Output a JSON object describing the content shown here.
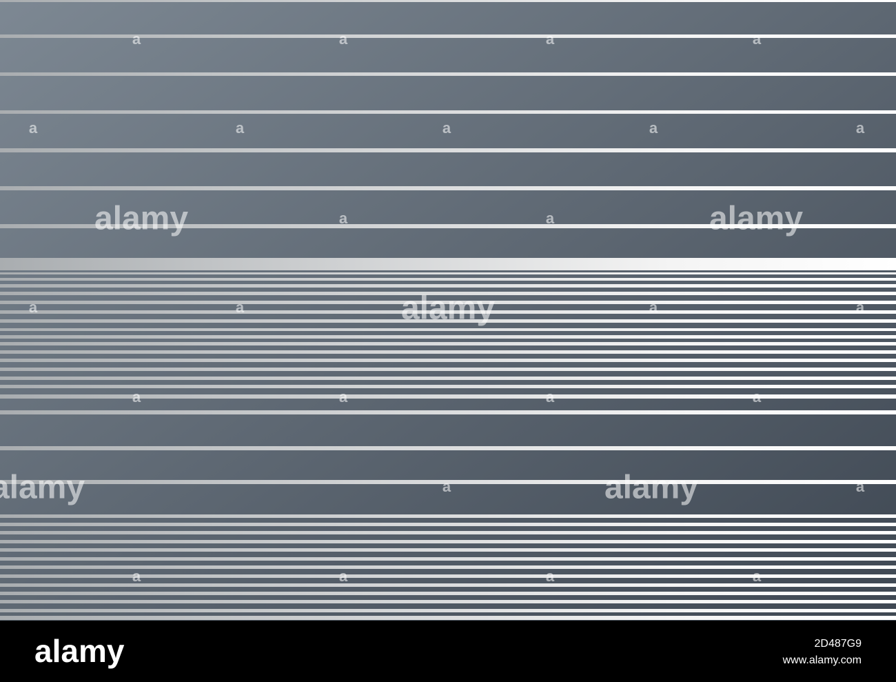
{
  "watermarks": [
    "alamy",
    "alamy",
    "alamy",
    "alamy",
    "alamy"
  ],
  "small_marks": [
    "a",
    "a",
    "a",
    "a",
    "a",
    "a",
    "a",
    "a",
    "a",
    "a",
    "a",
    "a",
    "a",
    "a",
    "a",
    "a",
    "a",
    "a",
    "a",
    "a",
    "a",
    "a",
    "a",
    "a",
    "a"
  ],
  "footer": {
    "logo": "alamy",
    "image_id": "2D487G9",
    "url": "www.alamy.com"
  }
}
